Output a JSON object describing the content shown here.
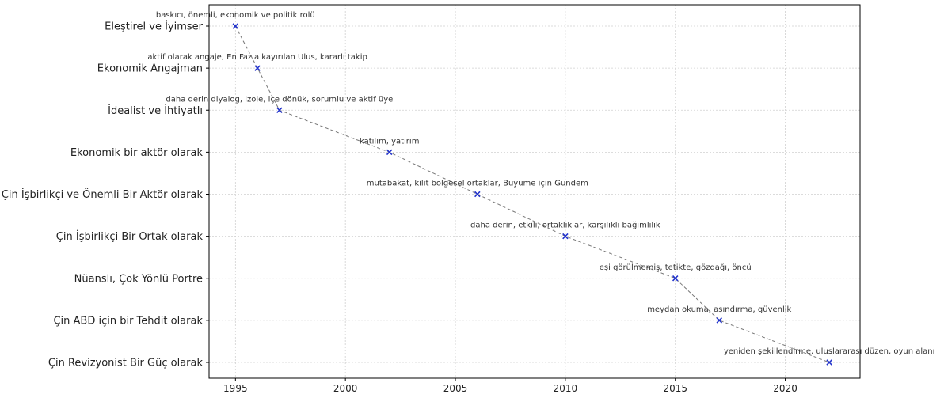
{
  "chart_data": {
    "type": "line",
    "title": "",
    "xlabel": "",
    "ylabel": "",
    "grid": true,
    "line_style": "dashed",
    "line_color": "#777777",
    "marker": "x",
    "marker_color": "#2233cc",
    "xlim": [
      1993.8,
      2023.4
    ],
    "xticks": [
      1995,
      2000,
      2005,
      2010,
      2015,
      2020
    ],
    "categories": [
      "Eleştirel ve İyimser",
      "Ekonomik Angajman",
      "İdealist ve İhtiyatlı",
      "Ekonomik bir aktör olarak",
      "Çin İşbirlikçi ve Önemli Bir Aktör olarak",
      "Çin İşbirlikçi Bir Ortak olarak",
      "Nüanslı, Çok Yönlü Portre",
      "Çin ABD için bir Tehdit olarak",
      "Çin Revizyonist Bir Güç olarak"
    ],
    "points": [
      {
        "x": 1995,
        "category": "Eleştirel ve İyimser",
        "annotation": "baskıcı, önemli, ekonomik ve politik rolü"
      },
      {
        "x": 1996,
        "category": "Ekonomik Angajman",
        "annotation": "aktif olarak angaje, En Fazla kayırılan Ulus, kararlı takip"
      },
      {
        "x": 1997,
        "category": "İdealist ve İhtiyatlı",
        "annotation": "daha derin diyalog, izole, içe dönük, sorumlu ve aktif üye"
      },
      {
        "x": 2002,
        "category": "Ekonomik bir aktör olarak",
        "annotation": "katılım, yatırım"
      },
      {
        "x": 2006,
        "category": "Çin İşbirlikçi ve Önemli Bir Aktör olarak",
        "annotation": "mutabakat, kilit bölgesel ortaklar, Büyüme için Gündem"
      },
      {
        "x": 2010,
        "category": "Çin İşbirlikçi Bir Ortak olarak",
        "annotation": "daha derin, etkili, ortaklıklar, karşılıklı bağımlılık"
      },
      {
        "x": 2015,
        "category": "Nüanslı, Çok Yönlü Portre",
        "annotation": "eşi görülmemiş, tetikte, gözdağı, öncü"
      },
      {
        "x": 2017,
        "category": "Çin ABD için bir Tehdit olarak",
        "annotation": "meydan okuma, aşındırma, güvenlik"
      },
      {
        "x": 2022,
        "category": "Çin Revizyonist Bir Güç olarak",
        "annotation": "yeniden şekillendirme, uluslararası düzen, oyun alanı"
      }
    ]
  }
}
